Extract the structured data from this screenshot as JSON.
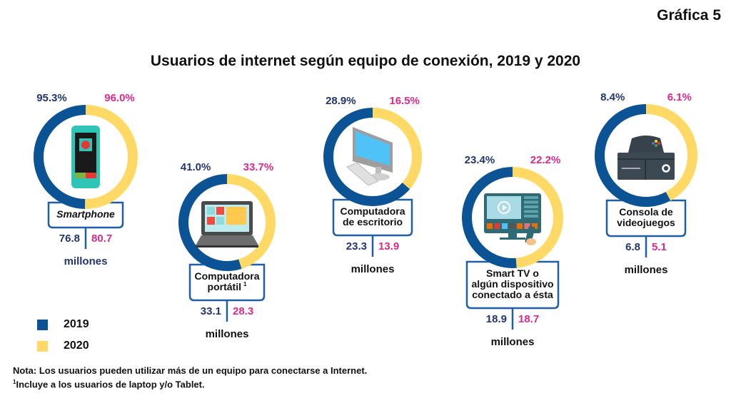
{
  "figure_label": "Gráfica 5",
  "chart_data": {
    "type": "pie",
    "subtype": "donut-comparison",
    "title": "Usuarios de internet según equipo de conexión, 2019 y 2020",
    "series": [
      {
        "name": "2019",
        "color": "#0b5394"
      },
      {
        "name": "2020",
        "color": "#ffd966"
      }
    ],
    "legend": {
      "position": "bottom-left",
      "items": [
        "2019",
        "2020"
      ]
    },
    "units_label": "millones",
    "categories": [
      {
        "label": [
          "Smartphone"
        ],
        "italic": true,
        "icon": "smartphone-icon",
        "pct_2019": "95.3%",
        "pct_2020": "96.0%",
        "pct_2019_value": 95.3,
        "pct_2020_value": 96.0,
        "users_2019": "76.8",
        "users_2020": "80.7",
        "users_2019_value": 76.8,
        "users_2020_value": 80.7,
        "units_color": "#22356e"
      },
      {
        "label": [
          "Computadora",
          "portátil"
        ],
        "footnote": "1",
        "icon": "laptop-icon",
        "pct_2019": "41.0%",
        "pct_2020": "33.7%",
        "pct_2019_value": 41.0,
        "pct_2020_value": 33.7,
        "users_2019": "33.1",
        "users_2020": "28.3",
        "users_2019_value": 33.1,
        "users_2020_value": 28.3,
        "units_color": "#111111"
      },
      {
        "label": [
          "Computadora",
          "de escritorio"
        ],
        "icon": "desktop-computer-icon",
        "pct_2019": "28.9%",
        "pct_2020": "16.5%",
        "pct_2019_value": 28.9,
        "pct_2020_value": 16.5,
        "users_2019": "23.3",
        "users_2020": "13.9",
        "users_2019_value": 23.3,
        "users_2020_value": 13.9,
        "units_color": "#111111"
      },
      {
        "label": [
          "Smart TV o",
          "algún dispositivo",
          "conectado a ésta"
        ],
        "icon": "smart-tv-icon",
        "pct_2019": "23.4%",
        "pct_2020": "22.2%",
        "pct_2019_value": 23.4,
        "pct_2020_value": 22.2,
        "users_2019": "18.9",
        "users_2020": "18.7",
        "users_2019_value": 18.9,
        "users_2020_value": 18.7,
        "units_color": "#111111"
      },
      {
        "label": [
          "Consola de",
          "videojuegos"
        ],
        "icon": "game-console-icon",
        "pct_2019": "8.4%",
        "pct_2020": "6.1%",
        "pct_2019_value": 8.4,
        "pct_2020_value": 6.1,
        "users_2019": "6.8",
        "users_2020": "5.1",
        "users_2019_value": 6.8,
        "users_2020_value": 5.1,
        "units_color": "#111111"
      }
    ]
  },
  "notes": {
    "line1": "Nota: Los usuarios pueden utilizar más de un equipo para conectarse a Internet.",
    "line2_sup": "1",
    "line2": "Incluye a los usuarios de laptop y/o Tablet."
  }
}
